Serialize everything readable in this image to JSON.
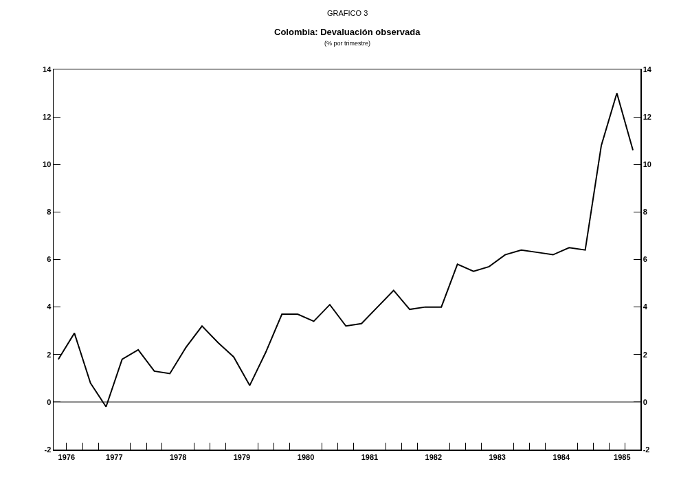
{
  "chart_data": {
    "type": "line",
    "title": "Colombia: Devaluación observada",
    "subtitle": "(% por trimestre)",
    "annotations": [
      "GRAFICO 3"
    ],
    "x": [
      "1976-08-15",
      "1976-11-15",
      "1977-02-15",
      "1977-05-15",
      "1977-08-15",
      "1977-11-15",
      "1978-02-15",
      "1978-05-15",
      "1978-08-15",
      "1978-11-15",
      "1979-02-15",
      "1979-05-15",
      "1979-08-15",
      "1979-11-15",
      "1980-02-15",
      "1980-05-15",
      "1980-08-15",
      "1980-11-15",
      "1981-02-15",
      "1981-05-15",
      "1981-08-15",
      "1981-11-15",
      "1982-02-15",
      "1982-05-15",
      "1982-08-15",
      "1982-11-15",
      "1983-02-15",
      "1983-05-15",
      "1983-08-15",
      "1983-11-15",
      "1984-02-15",
      "1984-05-15",
      "1984-08-15",
      "1984-11-15",
      "1985-02-15",
      "1985-05-15",
      "1985-08-15"
    ],
    "series": [
      {
        "color": "#000000",
        "values": [
          1.8,
          2.9,
          0.8,
          -0.2,
          1.8,
          2.2,
          1.3,
          1.2,
          2.3,
          3.2,
          2.5,
          1.9,
          0.7,
          2.1,
          3.7,
          3.7,
          3.4,
          4.1,
          3.2,
          3.3,
          4.0,
          4.7,
          3.9,
          4.0,
          4.0,
          5.8,
          5.5,
          5.7,
          6.2,
          6.4,
          6.3,
          6.2,
          6.5,
          6.4,
          10.8,
          13.0,
          10.6
        ]
      }
    ],
    "xlim": [
      "1976-07-19",
      "1985-09-27"
    ],
    "xticks": [
      {
        "value": "1976-10-01",
        "label": "1976"
      },
      {
        "value": "1977-07-01",
        "label": "1977"
      },
      {
        "value": "1978-07-01",
        "label": "1978"
      },
      {
        "value": "1979-07-01",
        "label": "1979"
      },
      {
        "value": "1980-07-01",
        "label": "1980"
      },
      {
        "value": "1981-07-01",
        "label": "1981"
      },
      {
        "value": "1982-07-01",
        "label": "1982"
      },
      {
        "value": "1983-07-01",
        "label": "1983"
      },
      {
        "value": "1984-07-01",
        "label": "1984"
      },
      {
        "value": "1985-06-14",
        "label": "1985"
      },
      {
        "value": "1976-10-01",
        "label": null
      },
      {
        "value": "1977-01-01",
        "label": null
      },
      {
        "value": "1977-04-01",
        "label": null
      },
      {
        "value": "1977-10-01",
        "label": null
      },
      {
        "value": "1978-01-01",
        "label": null
      },
      {
        "value": "1978-04-01",
        "label": null
      },
      {
        "value": "1978-10-01",
        "label": null
      },
      {
        "value": "1979-01-01",
        "label": null
      },
      {
        "value": "1979-04-01",
        "label": null
      },
      {
        "value": "1979-10-01",
        "label": null
      },
      {
        "value": "1980-01-01",
        "label": null
      },
      {
        "value": "1980-04-01",
        "label": null
      },
      {
        "value": "1980-10-01",
        "label": null
      },
      {
        "value": "1981-01-01",
        "label": null
      },
      {
        "value": "1981-04-01",
        "label": null
      },
      {
        "value": "1981-10-01",
        "label": null
      },
      {
        "value": "1982-01-01",
        "label": null
      },
      {
        "value": "1982-04-01",
        "label": null
      },
      {
        "value": "1982-10-01",
        "label": null
      },
      {
        "value": "1983-01-01",
        "label": null
      },
      {
        "value": "1983-04-01",
        "label": null
      },
      {
        "value": "1983-10-01",
        "label": null
      },
      {
        "value": "1984-01-01",
        "label": null
      },
      {
        "value": "1984-04-01",
        "label": null
      },
      {
        "value": "1984-10-01",
        "label": null
      },
      {
        "value": "1985-01-01",
        "label": null
      },
      {
        "value": "1985-04-01",
        "label": null
      },
      {
        "value": "1985-07-01",
        "label": null
      }
    ],
    "ylim": [
      -2,
      14
    ],
    "yticks": [
      -2,
      0,
      2,
      4,
      6,
      8,
      10,
      12,
      14
    ],
    "y2lim": [
      -2,
      14
    ],
    "y2ticks": [
      -2,
      0,
      2,
      4,
      6,
      8,
      10,
      12,
      14
    ],
    "ref_lines": [
      {
        "axis": "y",
        "value": 0,
        "label": null,
        "color": "#000000"
      }
    ],
    "grid": false,
    "marker": "none",
    "line_style": "solid"
  }
}
